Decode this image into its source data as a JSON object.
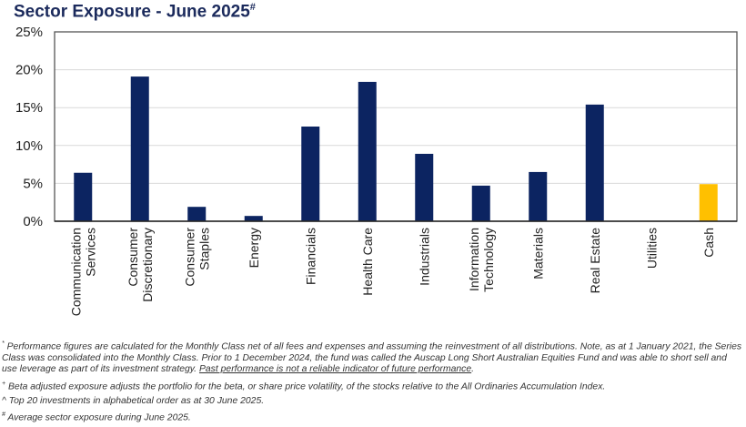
{
  "title": "Sector Exposure - June 2025",
  "title_marker": "#",
  "chart_data": {
    "type": "bar",
    "title": "Sector Exposure - June 2025#",
    "categories": [
      "Communication Services",
      "Consumer Discretionary",
      "Consumer Staples",
      "Energy",
      "Financials",
      "Health Care",
      "Industrials",
      "Information Technology",
      "Materials",
      "Real Estate",
      "Utilities",
      "Cash"
    ],
    "category_lines": [
      [
        "Communication",
        "Services"
      ],
      [
        "Consumer",
        "Discretionary"
      ],
      [
        "Consumer",
        "Staples"
      ],
      [
        "Energy"
      ],
      [
        "Financials"
      ],
      [
        "Health Care"
      ],
      [
        "Industrials"
      ],
      [
        "Information",
        "Technology"
      ],
      [
        "Materials"
      ],
      [
        "Real Estate"
      ],
      [
        "Utilities"
      ],
      [
        "Cash"
      ]
    ],
    "values": [
      6.4,
      19.1,
      1.9,
      0.7,
      12.5,
      18.4,
      8.9,
      4.7,
      6.5,
      15.4,
      0,
      4.9
    ],
    "ylim": [
      0,
      25
    ],
    "yticks": [
      "0%",
      "5%",
      "10%",
      "15%",
      "20%",
      "25%"
    ],
    "ytick_values": [
      0,
      5,
      10,
      15,
      20,
      25
    ],
    "xlabel": "",
    "ylabel": "",
    "grid": true,
    "colors": {
      "default": "#0c2461",
      "Cash": "#ffc000"
    }
  },
  "footnotes": {
    "perf_marker": "*",
    "perf_text": " Performance figures are calculated for the Monthly Class net of all fees and expenses and assuming the reinvestment of all distributions. Note, as at 1 January 2021, the Series Class was consolidated into the Monthly Class. Prior to 1 December 2024, the fund was called the Auscap Long Short Australian Equities Fund and was able to short sell and use leverage as part of its investment strategy. ",
    "perf_underlined": "Past performance is not a reliable indicator of future performance",
    "perf_end": ".",
    "beta_marker": "+",
    "beta_text": " Beta adjusted exposure adjusts the portfolio for the beta, or share price volatility, of the stocks relative to the All Ordinaries Accumulation Index.",
    "top20_text": "^ Top 20 investments in alphabetical order as at 30 June 2025.",
    "avg_marker": "#",
    "avg_text": " Average sector exposure during June 2025."
  }
}
